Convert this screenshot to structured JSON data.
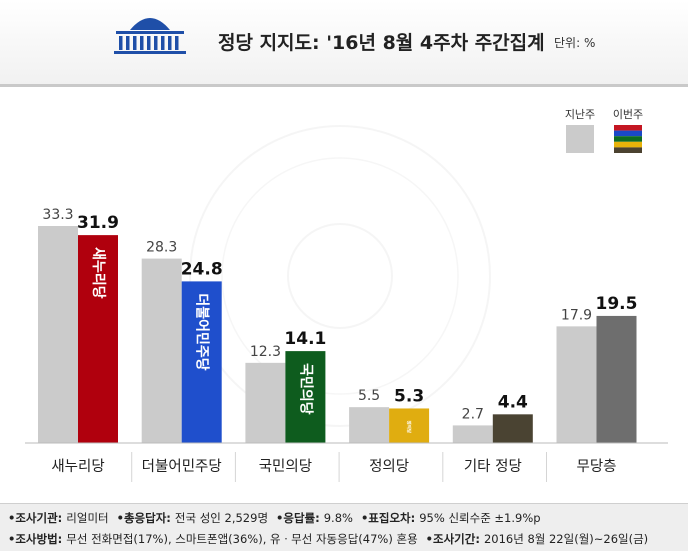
{
  "header": {
    "title": "정당 지지도: '16년 8월 4주차 주간집계",
    "unit": "단위: %"
  },
  "chart_data": {
    "type": "bar",
    "title": "정당 지지도: '16년 8월 4주차 주간집계",
    "categories": [
      "새누리당",
      "더불어민주당",
      "국민의당",
      "정의당",
      "기타 정당",
      "무당층"
    ],
    "series": [
      {
        "name": "지난주",
        "values": [
          33.3,
          28.3,
          12.3,
          5.5,
          2.7,
          17.9
        ]
      },
      {
        "name": "이번주",
        "values": [
          31.9,
          24.8,
          14.1,
          5.3,
          4.4,
          19.5
        ]
      }
    ],
    "bar_labels": [
      "새누리당",
      "더불어민주당",
      "국민의당",
      "정의당",
      "",
      ""
    ],
    "ylim": [
      0,
      36
    ],
    "legend_position": "top-right",
    "grid": false,
    "colors": {
      "previous": "#cbcbcb",
      "current": [
        "#b0000d",
        "#1f4fcc",
        "#0e5c1e",
        "#e0ad10",
        "#4a4332",
        "#6e6e6e"
      ],
      "legend_current": [
        "#c41622",
        "#1a48c8",
        "#0d6b22",
        "#e8b30a",
        "#4b4230"
      ]
    }
  },
  "footer": {
    "line1": [
      {
        "key": "조사기관:",
        "value": "리얼미터"
      },
      {
        "key": "총응답자:",
        "value": "전국 성인 2,529명"
      },
      {
        "key": "응답률:",
        "value": "9.8%"
      },
      {
        "key": "표집오차:",
        "value": "95% 신뢰수준 ±1.9%p"
      }
    ],
    "line2": [
      {
        "key": "조사방법:",
        "value": "무선 전화면접(17%), 스마트폰앱(36%), 유ㆍ무선 자동응답(47%) 혼용"
      },
      {
        "key": "조사기간:",
        "value": "2016년 8월 22일(월)~26일(금)"
      }
    ]
  }
}
